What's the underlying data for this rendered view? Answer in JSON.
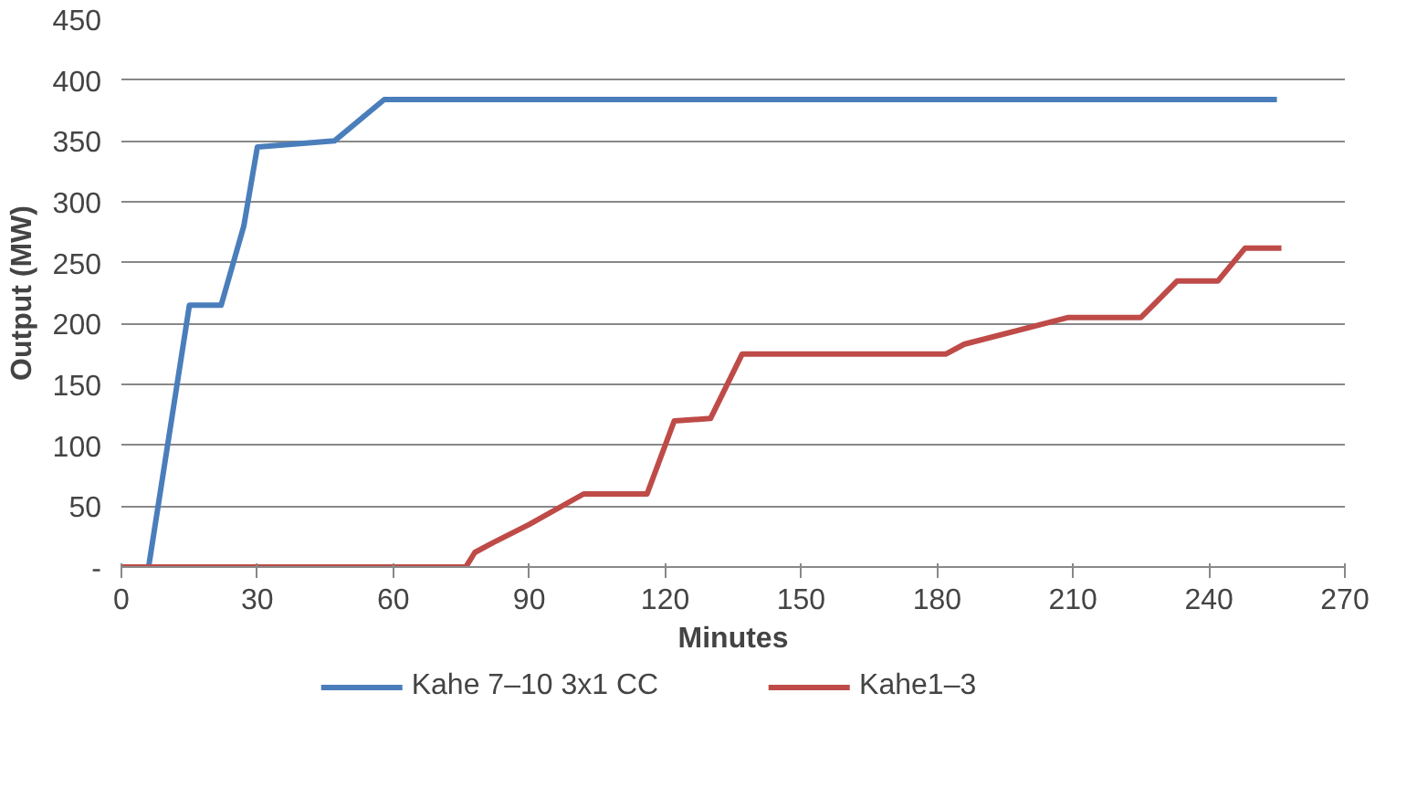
{
  "chart_data": {
    "type": "line",
    "xlabel": "Minutes",
    "ylabel": "Output (MW)",
    "xlim": [
      0,
      270
    ],
    "xticks": [
      0,
      30,
      60,
      90,
      120,
      150,
      180,
      210,
      240,
      270
    ],
    "ylim": [
      0,
      450
    ],
    "yticks": [
      {
        "value": 0,
        "label": "-"
      },
      50,
      100,
      150,
      200,
      250,
      300,
      350,
      400,
      450
    ],
    "grid": "y",
    "legend": "bottom",
    "series": [
      {
        "name": "Kahe 7–10 3x1 CC",
        "color": "#4a7ebb",
        "x": [
          0,
          6,
          15,
          22,
          27,
          30,
          47,
          58,
          255
        ],
        "values": [
          0,
          0,
          215,
          215,
          280,
          345,
          350,
          384,
          384
        ]
      },
      {
        "name": "Kahe1–3",
        "color": "#be4b48",
        "x": [
          0,
          76,
          78,
          82,
          90,
          102,
          116,
          122,
          130,
          137,
          182,
          186,
          209,
          225,
          233,
          242,
          248,
          256
        ],
        "values": [
          0,
          0,
          12,
          20,
          35,
          60,
          60,
          120,
          122,
          175,
          175,
          183,
          205,
          205,
          235,
          235,
          262,
          262
        ]
      }
    ]
  }
}
